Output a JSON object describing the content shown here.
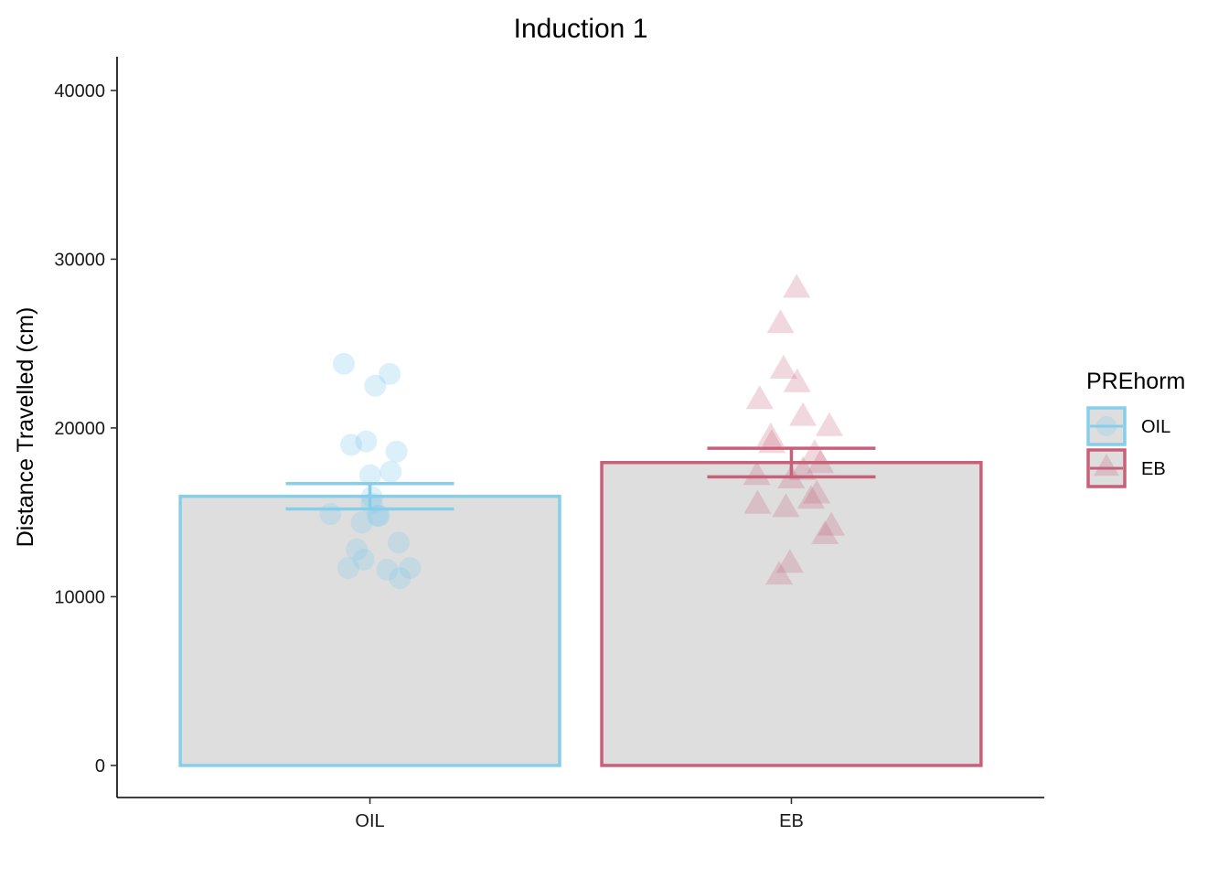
{
  "chart_data": {
    "type": "bar",
    "title": "Induction 1",
    "xlabel": "",
    "ylabel": "Distance Travelled (cm)",
    "ylim": [
      -1900,
      42000
    ],
    "yticks": [
      0,
      10000,
      20000,
      30000,
      40000
    ],
    "ytick_labels": [
      "0",
      "10000",
      "20000",
      "30000",
      "40000"
    ],
    "categories": [
      "OIL",
      "EB"
    ],
    "values": [
      15950,
      17950
    ],
    "error": [
      {
        "lower": 15200,
        "upper": 16700
      },
      {
        "lower": 17100,
        "upper": 18800
      }
    ],
    "bar_fill": "#dedede",
    "colors": {
      "OIL": "#87ceeb",
      "EB": "#c8607a"
    },
    "shapes": {
      "OIL": "circle",
      "EB": "triangle"
    },
    "points": {
      "OIL": [
        {
          "x": "OIL",
          "y": 23800
        },
        {
          "x": "OIL",
          "y": 23200
        },
        {
          "x": "OIL",
          "y": 22500
        },
        {
          "x": "OIL",
          "y": 19200
        },
        {
          "x": "OIL",
          "y": 19000
        },
        {
          "x": "OIL",
          "y": 18600
        },
        {
          "x": "OIL",
          "y": 17400
        },
        {
          "x": "OIL",
          "y": 17200
        },
        {
          "x": "OIL",
          "y": 15900
        },
        {
          "x": "OIL",
          "y": 15500
        },
        {
          "x": "OIL",
          "y": 14900
        },
        {
          "x": "OIL",
          "y": 14800
        },
        {
          "x": "OIL",
          "y": 14800
        },
        {
          "x": "OIL",
          "y": 14400
        },
        {
          "x": "OIL",
          "y": 13200
        },
        {
          "x": "OIL",
          "y": 12800
        },
        {
          "x": "OIL",
          "y": 12200
        },
        {
          "x": "OIL",
          "y": 11700
        },
        {
          "x": "OIL",
          "y": 11700
        },
        {
          "x": "OIL",
          "y": 11600
        },
        {
          "x": "OIL",
          "y": 11100
        }
      ],
      "EB": [
        {
          "x": "EB",
          "y": 28200
        },
        {
          "x": "EB",
          "y": 26100
        },
        {
          "x": "EB",
          "y": 23400
        },
        {
          "x": "EB",
          "y": 22600
        },
        {
          "x": "EB",
          "y": 21600
        },
        {
          "x": "EB",
          "y": 20600
        },
        {
          "x": "EB",
          "y": 20000
        },
        {
          "x": "EB",
          "y": 19400
        },
        {
          "x": "EB",
          "y": 19000
        },
        {
          "x": "EB",
          "y": 18400
        },
        {
          "x": "EB",
          "y": 17800
        },
        {
          "x": "EB",
          "y": 17400
        },
        {
          "x": "EB",
          "y": 17100
        },
        {
          "x": "EB",
          "y": 16900
        },
        {
          "x": "EB",
          "y": 16000
        },
        {
          "x": "EB",
          "y": 15700
        },
        {
          "x": "EB",
          "y": 15400
        },
        {
          "x": "EB",
          "y": 15200
        },
        {
          "x": "EB",
          "y": 14100
        },
        {
          "x": "EB",
          "y": 13600
        },
        {
          "x": "EB",
          "y": 11900
        },
        {
          "x": "EB",
          "y": 11200
        }
      ]
    },
    "legend": {
      "title": "PREhorm",
      "entries": [
        "OIL",
        "EB"
      ],
      "position": "right"
    }
  }
}
